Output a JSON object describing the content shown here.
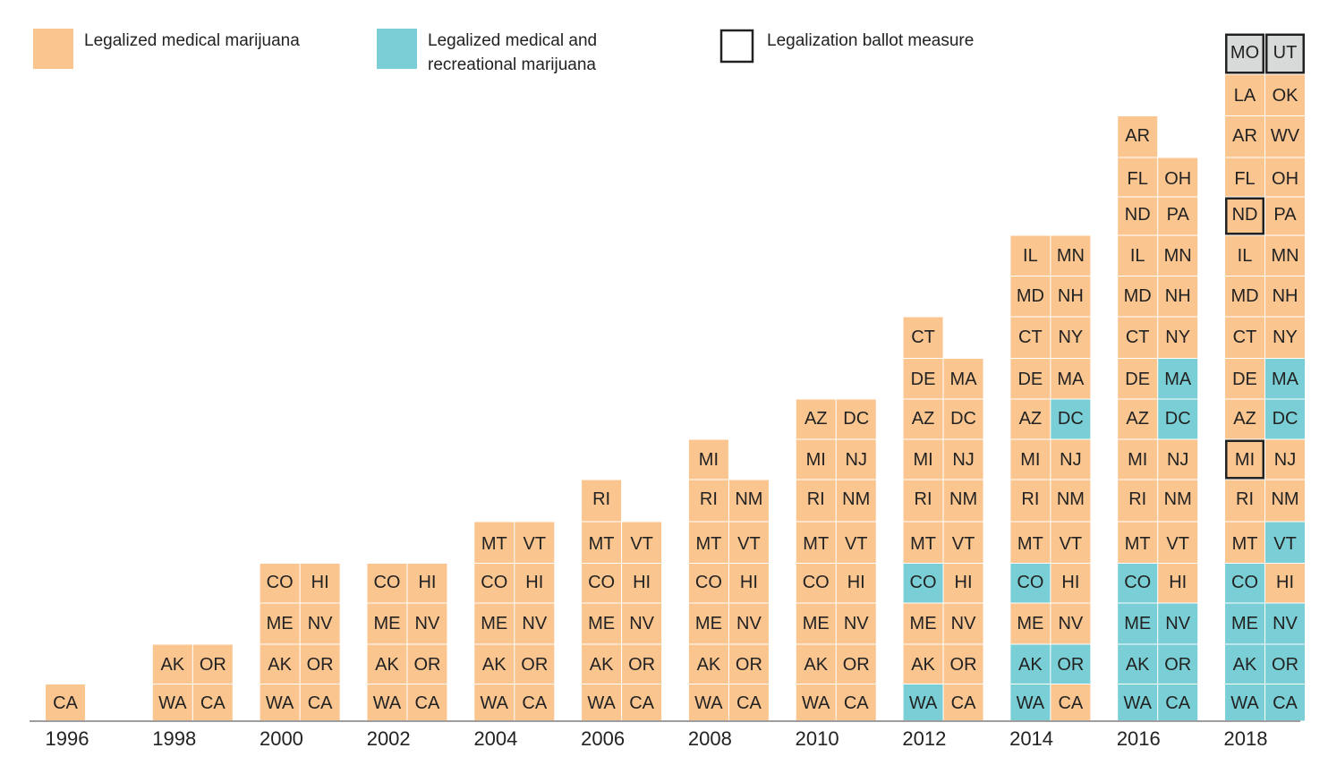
{
  "legend": [
    {
      "key": "medical",
      "lines": [
        "Legalized medical marijuana"
      ],
      "color": "#fbc590"
    },
    {
      "key": "recreational",
      "lines": [
        "Legalized medical and",
        "recreational marijuana"
      ],
      "color": "#7acfd6"
    },
    {
      "key": "ballot",
      "lines": [
        "Legalization ballot measure"
      ],
      "color": "#ffffff"
    }
  ],
  "colors": {
    "medical": "#fbc590",
    "recreational": "#7acfd6",
    "ballot_fill": "#d8d9d9",
    "ballot_border": "#222222",
    "axis": "#9e9e9e"
  },
  "chart_data": {
    "type": "table",
    "title": "",
    "xlabel": "",
    "ylabel": "",
    "categories": [
      "1996",
      "1998",
      "2000",
      "2002",
      "2004",
      "2006",
      "2008",
      "2010",
      "2012",
      "2014",
      "2016",
      "2018"
    ],
    "status_codes": {
      "m": "medical",
      "r": "recreational",
      "b": "ballot",
      "bm": "medical with ballot measure"
    },
    "columns": [
      {
        "year": "1996",
        "rows": [
          [
            {
              "s": "CA",
              "t": "m"
            }
          ]
        ]
      },
      {
        "year": "1998",
        "rows": [
          [
            {
              "s": "WA",
              "t": "m"
            },
            {
              "s": "CA",
              "t": "m"
            }
          ],
          [
            {
              "s": "AK",
              "t": "m"
            },
            {
              "s": "OR",
              "t": "m"
            }
          ]
        ]
      },
      {
        "year": "2000",
        "rows": [
          [
            {
              "s": "WA",
              "t": "m"
            },
            {
              "s": "CA",
              "t": "m"
            }
          ],
          [
            {
              "s": "AK",
              "t": "m"
            },
            {
              "s": "OR",
              "t": "m"
            }
          ],
          [
            {
              "s": "ME",
              "t": "m"
            },
            {
              "s": "NV",
              "t": "m"
            }
          ],
          [
            {
              "s": "CO",
              "t": "m"
            },
            {
              "s": "HI",
              "t": "m"
            }
          ]
        ]
      },
      {
        "year": "2002",
        "rows": [
          [
            {
              "s": "WA",
              "t": "m"
            },
            {
              "s": "CA",
              "t": "m"
            }
          ],
          [
            {
              "s": "AK",
              "t": "m"
            },
            {
              "s": "OR",
              "t": "m"
            }
          ],
          [
            {
              "s": "ME",
              "t": "m"
            },
            {
              "s": "NV",
              "t": "m"
            }
          ],
          [
            {
              "s": "CO",
              "t": "m"
            },
            {
              "s": "HI",
              "t": "m"
            }
          ]
        ]
      },
      {
        "year": "2004",
        "rows": [
          [
            {
              "s": "WA",
              "t": "m"
            },
            {
              "s": "CA",
              "t": "m"
            }
          ],
          [
            {
              "s": "AK",
              "t": "m"
            },
            {
              "s": "OR",
              "t": "m"
            }
          ],
          [
            {
              "s": "ME",
              "t": "m"
            },
            {
              "s": "NV",
              "t": "m"
            }
          ],
          [
            {
              "s": "CO",
              "t": "m"
            },
            {
              "s": "HI",
              "t": "m"
            }
          ],
          [
            {
              "s": "MT",
              "t": "m"
            },
            {
              "s": "VT",
              "t": "m"
            }
          ]
        ]
      },
      {
        "year": "2006",
        "rows": [
          [
            {
              "s": "WA",
              "t": "m"
            },
            {
              "s": "CA",
              "t": "m"
            }
          ],
          [
            {
              "s": "AK",
              "t": "m"
            },
            {
              "s": "OR",
              "t": "m"
            }
          ],
          [
            {
              "s": "ME",
              "t": "m"
            },
            {
              "s": "NV",
              "t": "m"
            }
          ],
          [
            {
              "s": "CO",
              "t": "m"
            },
            {
              "s": "HI",
              "t": "m"
            }
          ],
          [
            {
              "s": "MT",
              "t": "m"
            },
            {
              "s": "VT",
              "t": "m"
            }
          ],
          [
            {
              "s": "RI",
              "t": "m"
            }
          ]
        ]
      },
      {
        "year": "2008",
        "rows": [
          [
            {
              "s": "WA",
              "t": "m"
            },
            {
              "s": "CA",
              "t": "m"
            }
          ],
          [
            {
              "s": "AK",
              "t": "m"
            },
            {
              "s": "OR",
              "t": "m"
            }
          ],
          [
            {
              "s": "ME",
              "t": "m"
            },
            {
              "s": "NV",
              "t": "m"
            }
          ],
          [
            {
              "s": "CO",
              "t": "m"
            },
            {
              "s": "HI",
              "t": "m"
            }
          ],
          [
            {
              "s": "MT",
              "t": "m"
            },
            {
              "s": "VT",
              "t": "m"
            }
          ],
          [
            {
              "s": "RI",
              "t": "m"
            },
            {
              "s": "NM",
              "t": "m"
            }
          ],
          [
            {
              "s": "MI",
              "t": "m"
            }
          ]
        ]
      },
      {
        "year": "2010",
        "rows": [
          [
            {
              "s": "WA",
              "t": "m"
            },
            {
              "s": "CA",
              "t": "m"
            }
          ],
          [
            {
              "s": "AK",
              "t": "m"
            },
            {
              "s": "OR",
              "t": "m"
            }
          ],
          [
            {
              "s": "ME",
              "t": "m"
            },
            {
              "s": "NV",
              "t": "m"
            }
          ],
          [
            {
              "s": "CO",
              "t": "m"
            },
            {
              "s": "HI",
              "t": "m"
            }
          ],
          [
            {
              "s": "MT",
              "t": "m"
            },
            {
              "s": "VT",
              "t": "m"
            }
          ],
          [
            {
              "s": "RI",
              "t": "m"
            },
            {
              "s": "NM",
              "t": "m"
            }
          ],
          [
            {
              "s": "MI",
              "t": "m"
            },
            {
              "s": "NJ",
              "t": "m"
            }
          ],
          [
            {
              "s": "AZ",
              "t": "m"
            },
            {
              "s": "DC",
              "t": "m"
            }
          ]
        ]
      },
      {
        "year": "2012",
        "rows": [
          [
            {
              "s": "WA",
              "t": "r"
            },
            {
              "s": "CA",
              "t": "m"
            }
          ],
          [
            {
              "s": "AK",
              "t": "m"
            },
            {
              "s": "OR",
              "t": "m"
            }
          ],
          [
            {
              "s": "ME",
              "t": "m"
            },
            {
              "s": "NV",
              "t": "m"
            }
          ],
          [
            {
              "s": "CO",
              "t": "r"
            },
            {
              "s": "HI",
              "t": "m"
            }
          ],
          [
            {
              "s": "MT",
              "t": "m"
            },
            {
              "s": "VT",
              "t": "m"
            }
          ],
          [
            {
              "s": "RI",
              "t": "m"
            },
            {
              "s": "NM",
              "t": "m"
            }
          ],
          [
            {
              "s": "MI",
              "t": "m"
            },
            {
              "s": "NJ",
              "t": "m"
            }
          ],
          [
            {
              "s": "AZ",
              "t": "m"
            },
            {
              "s": "DC",
              "t": "m"
            }
          ],
          [
            {
              "s": "DE",
              "t": "m"
            },
            {
              "s": "MA",
              "t": "m"
            }
          ],
          [
            {
              "s": "CT",
              "t": "m"
            }
          ]
        ]
      },
      {
        "year": "2014",
        "rows": [
          [
            {
              "s": "WA",
              "t": "r"
            },
            {
              "s": "CA",
              "t": "m"
            }
          ],
          [
            {
              "s": "AK",
              "t": "r"
            },
            {
              "s": "OR",
              "t": "r"
            }
          ],
          [
            {
              "s": "ME",
              "t": "m"
            },
            {
              "s": "NV",
              "t": "m"
            }
          ],
          [
            {
              "s": "CO",
              "t": "r"
            },
            {
              "s": "HI",
              "t": "m"
            }
          ],
          [
            {
              "s": "MT",
              "t": "m"
            },
            {
              "s": "VT",
              "t": "m"
            }
          ],
          [
            {
              "s": "RI",
              "t": "m"
            },
            {
              "s": "NM",
              "t": "m"
            }
          ],
          [
            {
              "s": "MI",
              "t": "m"
            },
            {
              "s": "NJ",
              "t": "m"
            }
          ],
          [
            {
              "s": "AZ",
              "t": "m"
            },
            {
              "s": "DC",
              "t": "r"
            }
          ],
          [
            {
              "s": "DE",
              "t": "m"
            },
            {
              "s": "MA",
              "t": "m"
            }
          ],
          [
            {
              "s": "CT",
              "t": "m"
            },
            {
              "s": "NY",
              "t": "m"
            }
          ],
          [
            {
              "s": "MD",
              "t": "m"
            },
            {
              "s": "NH",
              "t": "m"
            }
          ],
          [
            {
              "s": "IL",
              "t": "m"
            },
            {
              "s": "MN",
              "t": "m"
            }
          ]
        ]
      },
      {
        "year": "2016",
        "rows": [
          [
            {
              "s": "WA",
              "t": "r"
            },
            {
              "s": "CA",
              "t": "r"
            }
          ],
          [
            {
              "s": "AK",
              "t": "r"
            },
            {
              "s": "OR",
              "t": "r"
            }
          ],
          [
            {
              "s": "ME",
              "t": "r"
            },
            {
              "s": "NV",
              "t": "r"
            }
          ],
          [
            {
              "s": "CO",
              "t": "r"
            },
            {
              "s": "HI",
              "t": "m"
            }
          ],
          [
            {
              "s": "MT",
              "t": "m"
            },
            {
              "s": "VT",
              "t": "m"
            }
          ],
          [
            {
              "s": "RI",
              "t": "m"
            },
            {
              "s": "NM",
              "t": "m"
            }
          ],
          [
            {
              "s": "MI",
              "t": "m"
            },
            {
              "s": "NJ",
              "t": "m"
            }
          ],
          [
            {
              "s": "AZ",
              "t": "m"
            },
            {
              "s": "DC",
              "t": "r"
            }
          ],
          [
            {
              "s": "DE",
              "t": "m"
            },
            {
              "s": "MA",
              "t": "r"
            }
          ],
          [
            {
              "s": "CT",
              "t": "m"
            },
            {
              "s": "NY",
              "t": "m"
            }
          ],
          [
            {
              "s": "MD",
              "t": "m"
            },
            {
              "s": "NH",
              "t": "m"
            }
          ],
          [
            {
              "s": "IL",
              "t": "m"
            },
            {
              "s": "MN",
              "t": "m"
            }
          ],
          [
            {
              "s": "ND",
              "t": "m"
            },
            {
              "s": "PA",
              "t": "m"
            }
          ],
          [
            {
              "s": "FL",
              "t": "m"
            },
            {
              "s": "OH",
              "t": "m"
            }
          ],
          [
            {
              "s": "AR",
              "t": "m"
            }
          ]
        ]
      },
      {
        "year": "2018",
        "rows": [
          [
            {
              "s": "WA",
              "t": "r"
            },
            {
              "s": "CA",
              "t": "r"
            }
          ],
          [
            {
              "s": "AK",
              "t": "r"
            },
            {
              "s": "OR",
              "t": "r"
            }
          ],
          [
            {
              "s": "ME",
              "t": "r"
            },
            {
              "s": "NV",
              "t": "r"
            }
          ],
          [
            {
              "s": "CO",
              "t": "r"
            },
            {
              "s": "HI",
              "t": "m"
            }
          ],
          [
            {
              "s": "MT",
              "t": "m"
            },
            {
              "s": "VT",
              "t": "r"
            }
          ],
          [
            {
              "s": "RI",
              "t": "m"
            },
            {
              "s": "NM",
              "t": "m"
            }
          ],
          [
            {
              "s": "MI",
              "t": "bm"
            },
            {
              "s": "NJ",
              "t": "m"
            }
          ],
          [
            {
              "s": "AZ",
              "t": "m"
            },
            {
              "s": "DC",
              "t": "r"
            }
          ],
          [
            {
              "s": "DE",
              "t": "m"
            },
            {
              "s": "MA",
              "t": "r"
            }
          ],
          [
            {
              "s": "CT",
              "t": "m"
            },
            {
              "s": "NY",
              "t": "m"
            }
          ],
          [
            {
              "s": "MD",
              "t": "m"
            },
            {
              "s": "NH",
              "t": "m"
            }
          ],
          [
            {
              "s": "IL",
              "t": "m"
            },
            {
              "s": "MN",
              "t": "m"
            }
          ],
          [
            {
              "s": "ND",
              "t": "bm"
            },
            {
              "s": "PA",
              "t": "m"
            }
          ],
          [
            {
              "s": "FL",
              "t": "m"
            },
            {
              "s": "OH",
              "t": "m"
            }
          ],
          [
            {
              "s": "AR",
              "t": "m"
            },
            {
              "s": "WV",
              "t": "m"
            }
          ],
          [
            {
              "s": "LA",
              "t": "m"
            },
            {
              "s": "OK",
              "t": "m"
            }
          ],
          [
            {
              "s": "MO",
              "t": "b"
            },
            {
              "s": "UT",
              "t": "b"
            }
          ]
        ]
      }
    ]
  }
}
